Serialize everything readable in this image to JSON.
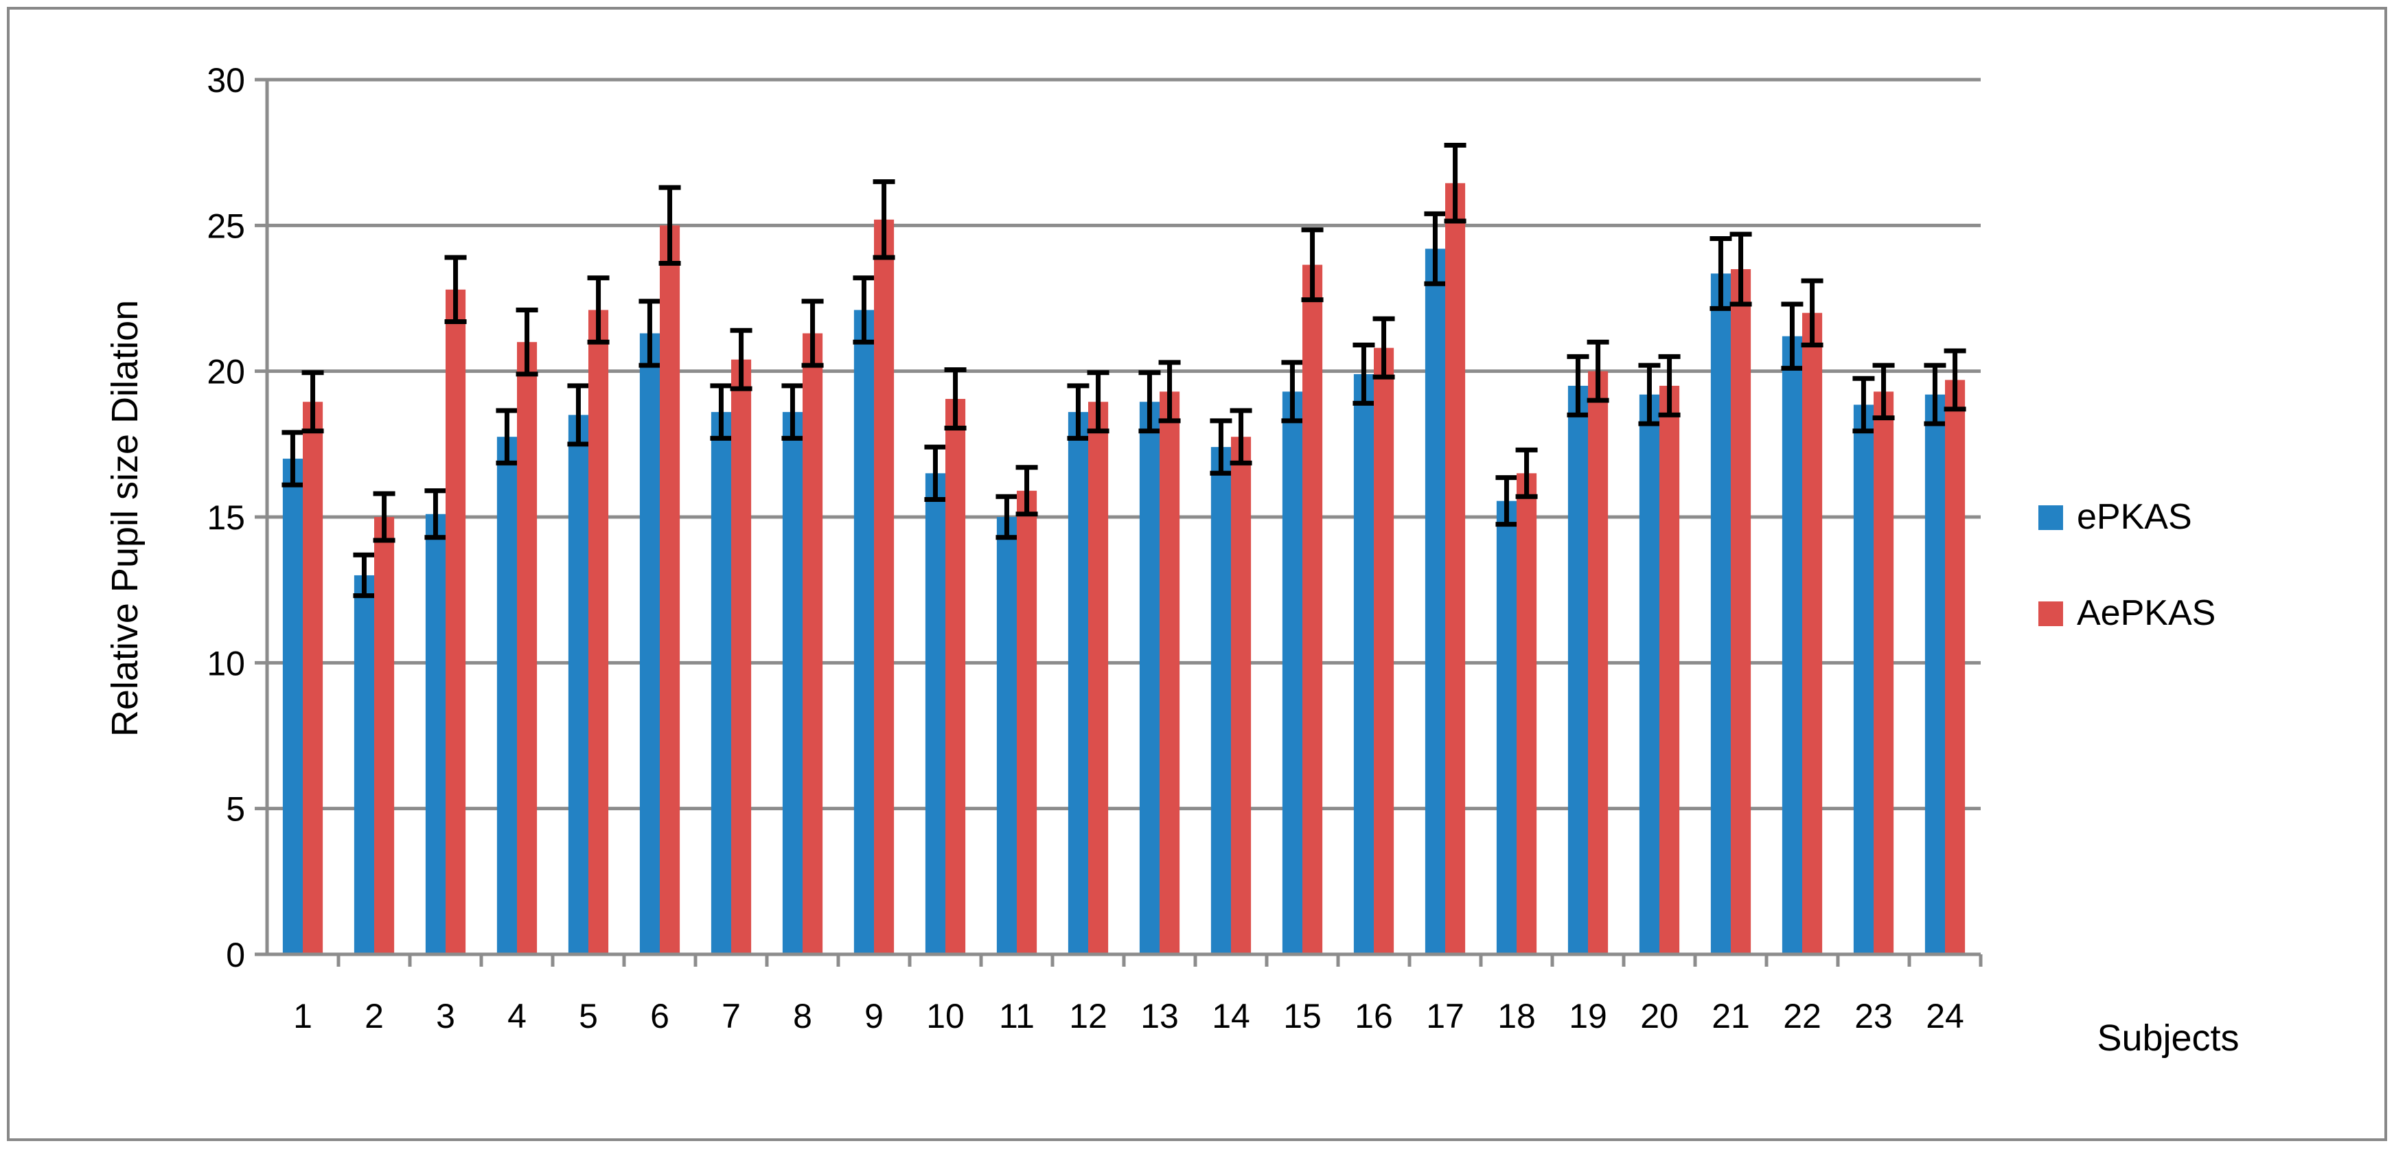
{
  "chart_data": {
    "type": "bar",
    "title": "",
    "xlabel": "Subjects",
    "ylabel": "Relative Pupil size Dilation",
    "ylim": [
      0,
      30
    ],
    "yticks": [
      0,
      5,
      10,
      15,
      20,
      25,
      30
    ],
    "grid": true,
    "legend_position": "right",
    "categories": [
      "1",
      "2",
      "3",
      "4",
      "5",
      "6",
      "7",
      "8",
      "9",
      "10",
      "11",
      "12",
      "13",
      "14",
      "15",
      "16",
      "17",
      "18",
      "19",
      "20",
      "21",
      "22",
      "23",
      "24"
    ],
    "series": [
      {
        "name": "ePKAS",
        "color": "#2382c4",
        "values": [
          17.0,
          13.0,
          15.1,
          17.75,
          18.5,
          21.3,
          18.6,
          18.6,
          22.1,
          16.5,
          15.0,
          18.6,
          18.95,
          17.4,
          19.3,
          19.9,
          24.2,
          15.55,
          19.5,
          19.2,
          23.35,
          21.2,
          18.85,
          19.2
        ],
        "error": [
          0.9,
          0.7,
          0.8,
          0.9,
          1.0,
          1.1,
          0.9,
          0.9,
          1.1,
          0.9,
          0.7,
          0.9,
          1.0,
          0.9,
          1.0,
          1.0,
          1.2,
          0.8,
          1.0,
          1.0,
          1.2,
          1.1,
          0.9,
          1.0
        ]
      },
      {
        "name": "AePKAS",
        "color": "#dc4f4c",
        "values": [
          18.95,
          15.0,
          22.8,
          21.0,
          22.1,
          25.0,
          20.4,
          21.3,
          25.2,
          19.05,
          15.9,
          18.95,
          19.3,
          17.75,
          23.65,
          20.8,
          26.45,
          16.5,
          20.0,
          19.5,
          23.5,
          22.0,
          19.3,
          19.7
        ],
        "error": [
          1.0,
          0.8,
          1.1,
          1.1,
          1.1,
          1.3,
          1.0,
          1.1,
          1.3,
          1.0,
          0.8,
          1.0,
          1.0,
          0.9,
          1.2,
          1.0,
          1.3,
          0.8,
          1.0,
          1.0,
          1.2,
          1.1,
          0.9,
          1.0
        ]
      }
    ]
  }
}
